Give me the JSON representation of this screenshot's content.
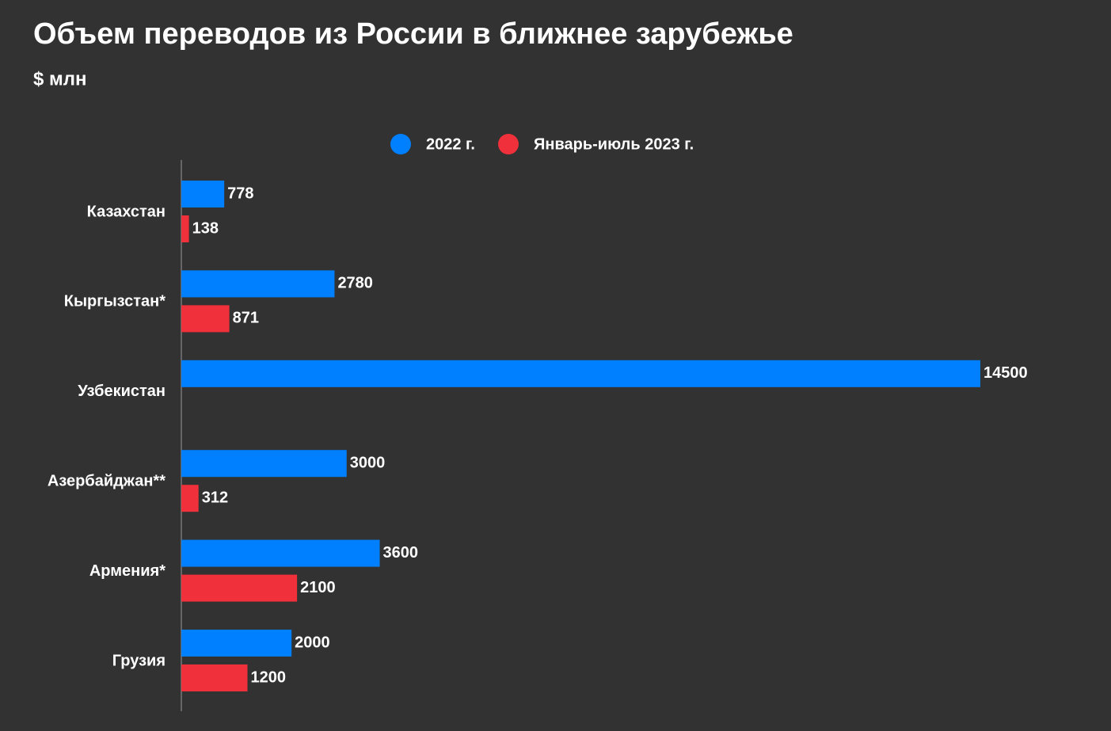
{
  "chart_data": {
    "type": "hbar",
    "title": "Объем переводов из России в ближнее зарубежье",
    "subtitle": "$ млн",
    "categories": [
      "Казахстан",
      "Кыргызстан*",
      "Узбекистан",
      "Азербайджан**",
      "Армения*",
      "Грузия"
    ],
    "series": [
      {
        "name": "2022 г.",
        "color": "#0080ff",
        "values": [
          778,
          2780,
          14500,
          3000,
          3600,
          2000
        ]
      },
      {
        "name": "Январь-июль 2023 г.",
        "color": "#f0303a",
        "values": [
          138,
          871,
          null,
          312,
          2100,
          1200
        ]
      }
    ],
    "xlim": [
      0,
      14500
    ],
    "legend": "top"
  }
}
